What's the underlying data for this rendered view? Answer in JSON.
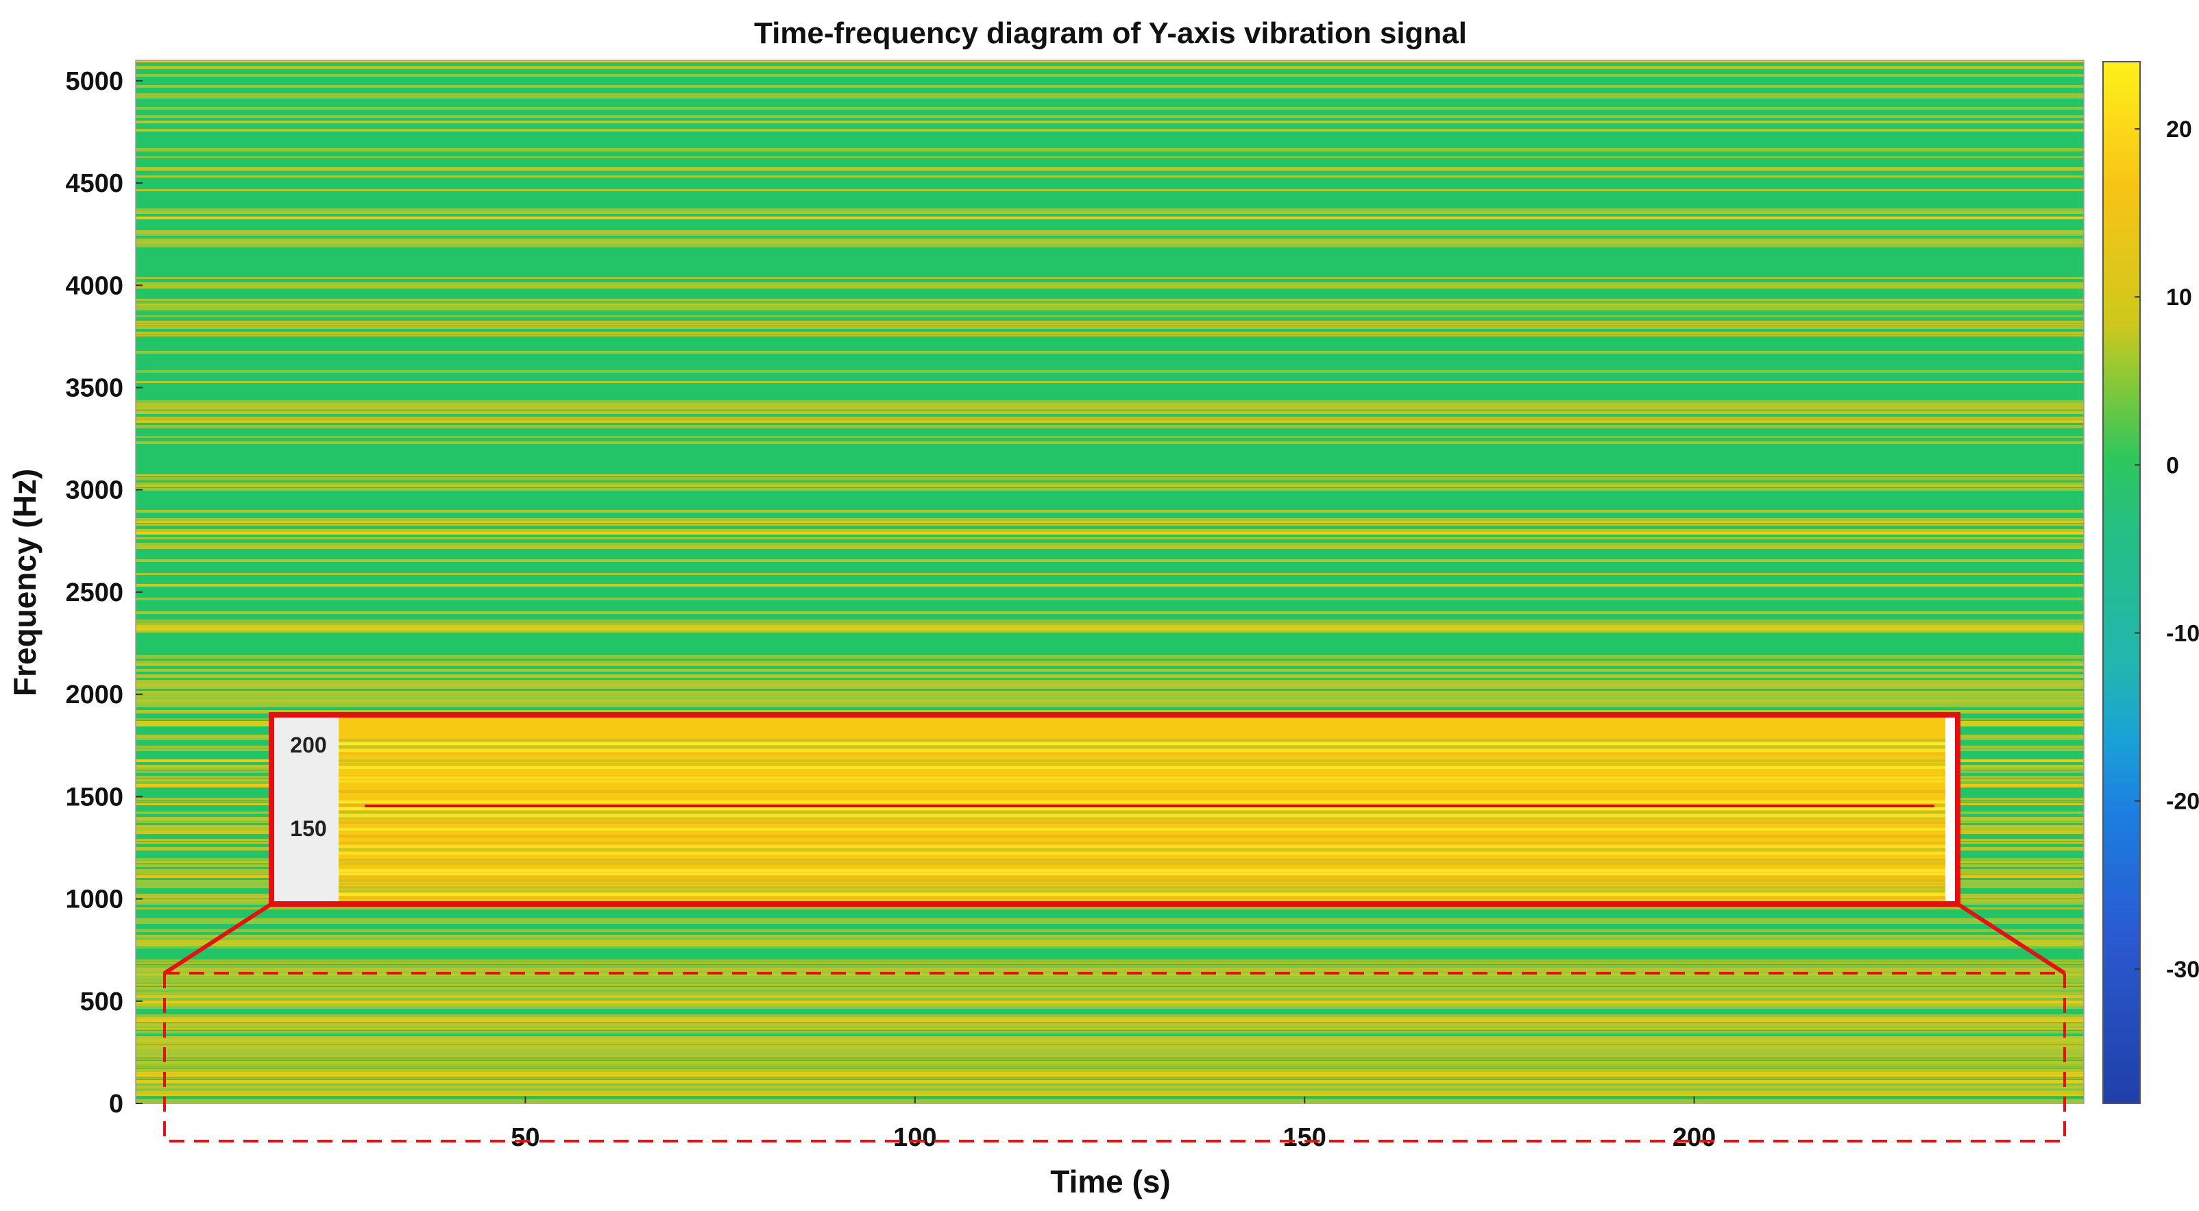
{
  "chart_data": {
    "type": "heatmap",
    "title": "Time-frequency diagram of Y-axis vibration signal",
    "xlabel": "Time (s)",
    "ylabel": "Frequency (Hz)",
    "xlim": [
      0,
      250
    ],
    "ylim": [
      0,
      5100
    ],
    "x_ticks": [
      50,
      100,
      150,
      200
    ],
    "y_ticks": [
      0,
      500,
      1000,
      1500,
      2000,
      2500,
      3000,
      3500,
      4000,
      4500,
      5000
    ],
    "colorbar": {
      "range": [
        -38,
        24
      ],
      "ticks": [
        20,
        10,
        0,
        -10,
        -20,
        -30
      ],
      "colors": [
        "#fff000",
        "#f7c415",
        "#cdc91c",
        "#33c75c",
        "#21b6b0",
        "#1aa2d8",
        "#1f6fd6",
        "#2a52c8",
        "#1f3fa7"
      ]
    },
    "intensity_bands": [
      {
        "freq_range": [
          0,
          700
        ],
        "level": "high (yellow, 10 to 20)"
      },
      {
        "freq_range": [
          700,
          2000
        ],
        "level": "mixed (yellow/green stripes)"
      },
      {
        "freq_range": [
          2000,
          5100
        ],
        "level": "moderate (green with yellow stripes, 0 to 10)"
      }
    ],
    "inset": {
      "description": "zoomed view of the low-frequency band",
      "y_ticks": [
        200,
        150
      ],
      "feature_line_freq": 160,
      "line_color": "#d01010"
    },
    "colors": {
      "low": "#21c364",
      "mid": "#bdc82a",
      "high": "#f5cb12",
      "highlight": "#e60f0f"
    }
  }
}
